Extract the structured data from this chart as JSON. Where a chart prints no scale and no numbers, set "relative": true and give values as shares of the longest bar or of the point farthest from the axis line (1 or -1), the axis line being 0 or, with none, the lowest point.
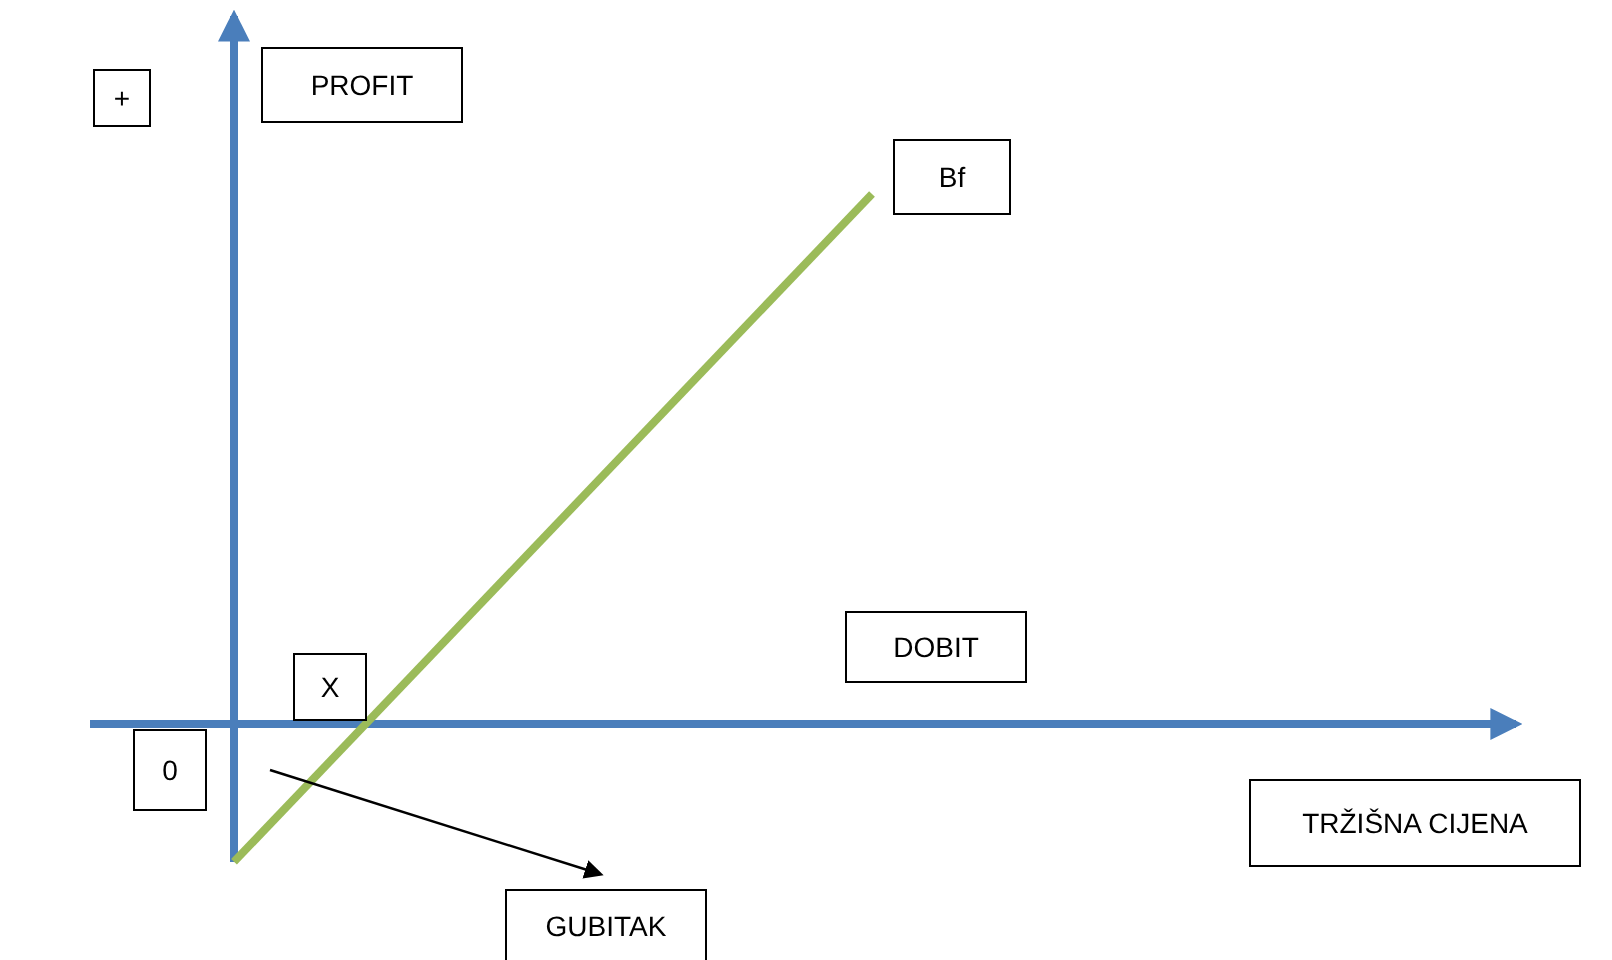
{
  "chart_data": {
    "type": "line",
    "relative": true,
    "categories": [
      null,
      null,
      null
    ],
    "series": [
      {
        "color": "#9bbb59",
        "values": [
          -0.26,
          1,
          null
        ]
      }
    ],
    "ref_lines": [
      {
        "axis": "y",
        "value": 0,
        "color": "#4a7ebb"
      }
    ],
    "xlabel": "TRŽIŠNA CIJENA",
    "ylabel": "PROFIT",
    "annotations": [
      "+",
      "Bf",
      "DOBIT",
      "X",
      "0",
      "GUBITAK"
    ]
  }
}
